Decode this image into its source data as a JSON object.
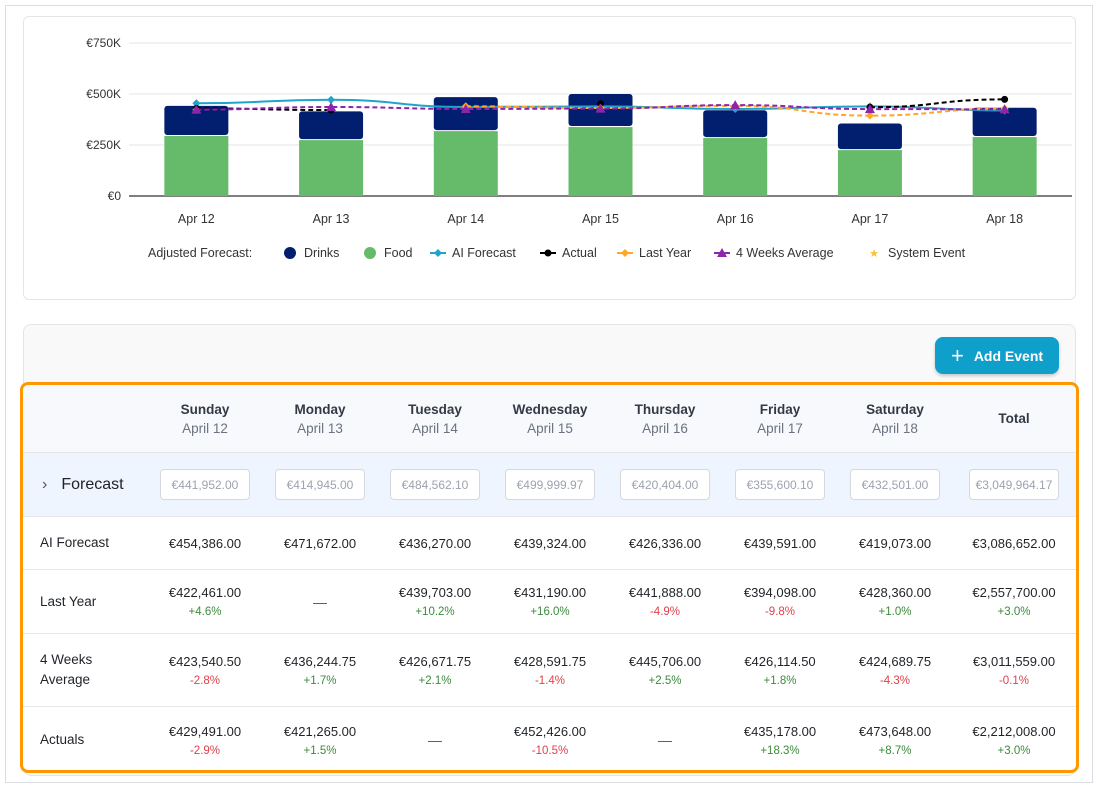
{
  "chart_data": {
    "type": "bar",
    "stacked": true,
    "categories": [
      "Apr 12",
      "Apr 13",
      "Apr 14",
      "Apr 15",
      "Apr 16",
      "Apr 17",
      "Apr 18"
    ],
    "yticks": [
      "€0",
      "€250K",
      "€500K",
      "€750K"
    ],
    "ylim": [
      0,
      750000
    ],
    "grid": true,
    "legend_position": "bottom",
    "legend_title": "Adjusted Forecast:",
    "bar_series": [
      {
        "name": "Food",
        "color": "#66bb6a",
        "values": [
          294000,
          274000,
          318000,
          338000,
          284000,
          225000,
          289000
        ]
      },
      {
        "name": "Drinks",
        "color": "#021e6e",
        "values": [
          147952,
          140945,
          166562,
          162000,
          136404,
          130600,
          143501
        ]
      }
    ],
    "line_series": [
      {
        "name": "AI Forecast",
        "color": "#1ea5c9",
        "style": "solid",
        "marker": "diamond",
        "values": [
          454386,
          471672,
          436270,
          439324,
          426336,
          439591,
          419073
        ]
      },
      {
        "name": "Actual",
        "color": "#000000",
        "style": "dashed",
        "marker": "circle",
        "values": [
          429491,
          421265,
          null,
          452426,
          null,
          435178,
          473648
        ]
      },
      {
        "name": "Last Year",
        "color": "#ffa726",
        "style": "dashed",
        "marker": "diamond",
        "values": [
          422461,
          null,
          439703,
          431190,
          441888,
          394098,
          428360
        ]
      },
      {
        "name": "4 Weeks Average",
        "color": "#8e24aa",
        "style": "dashed",
        "marker": "triangle",
        "values": [
          423540.5,
          436244.75,
          426671.75,
          428591.75,
          445706,
          426114.5,
          424689.75
        ]
      },
      {
        "name": "System Event",
        "color": "#fbc02d",
        "style": "none",
        "marker": "star",
        "values": []
      }
    ]
  },
  "actions": {
    "add_event": "Add Event"
  },
  "table": {
    "days": [
      {
        "name": "Sunday",
        "date": "April 12"
      },
      {
        "name": "Monday",
        "date": "April 13"
      },
      {
        "name": "Tuesday",
        "date": "April 14"
      },
      {
        "name": "Wednesday",
        "date": "April 15"
      },
      {
        "name": "Thursday",
        "date": "April 16"
      },
      {
        "name": "Friday",
        "date": "April 17"
      },
      {
        "name": "Saturday",
        "date": "April 18"
      }
    ],
    "total_label": "Total",
    "rows": [
      {
        "label": "Forecast",
        "type": "input",
        "values": [
          "€441,952.00",
          "€414,945.00",
          "€484,562.10",
          "€499,999.97",
          "€420,404.00",
          "€355,600.10",
          "€432,501.00",
          "€3,049,964.17"
        ]
      },
      {
        "label": "AI Forecast",
        "values": [
          "€454,386.00",
          "€471,672.00",
          "€436,270.00",
          "€439,324.00",
          "€426,336.00",
          "€439,591.00",
          "€419,073.00",
          "€3,086,652.00"
        ],
        "pcts": []
      },
      {
        "label": "Last Year",
        "values": [
          "€422,461.00",
          "—",
          "€439,703.00",
          "€431,190.00",
          "€441,888.00",
          "€394,098.00",
          "€428,360.00",
          "€2,557,700.00"
        ],
        "pcts": [
          "+4.6%",
          "",
          "+10.2%",
          "+16.0%",
          "-4.9%",
          "-9.8%",
          "+1.0%",
          "+3.0%"
        ]
      },
      {
        "label": "4 Weeks Average",
        "values": [
          "€423,540.50",
          "€436,244.75",
          "€426,671.75",
          "€428,591.75",
          "€445,706.00",
          "€426,114.50",
          "€424,689.75",
          "€3,011,559.00"
        ],
        "pcts": [
          "-2.8%",
          "+1.7%",
          "+2.1%",
          "-1.4%",
          "+2.5%",
          "+1.8%",
          "-4.3%",
          "-0.1%"
        ]
      },
      {
        "label": "Actuals",
        "values": [
          "€429,491.00",
          "€421,265.00",
          "—",
          "€452,426.00",
          "—",
          "€435,178.00",
          "€473,648.00",
          "€2,212,008.00"
        ],
        "pcts": [
          "-2.9%",
          "+1.5%",
          "",
          "-10.5%",
          "",
          "+18.3%",
          "+8.7%",
          "+3.0%"
        ]
      }
    ]
  },
  "colors": {
    "highlight_border": "#ff9800",
    "accent": "#0f9fcb",
    "positive": "#3c8a3c",
    "negative": "#e0404a"
  }
}
